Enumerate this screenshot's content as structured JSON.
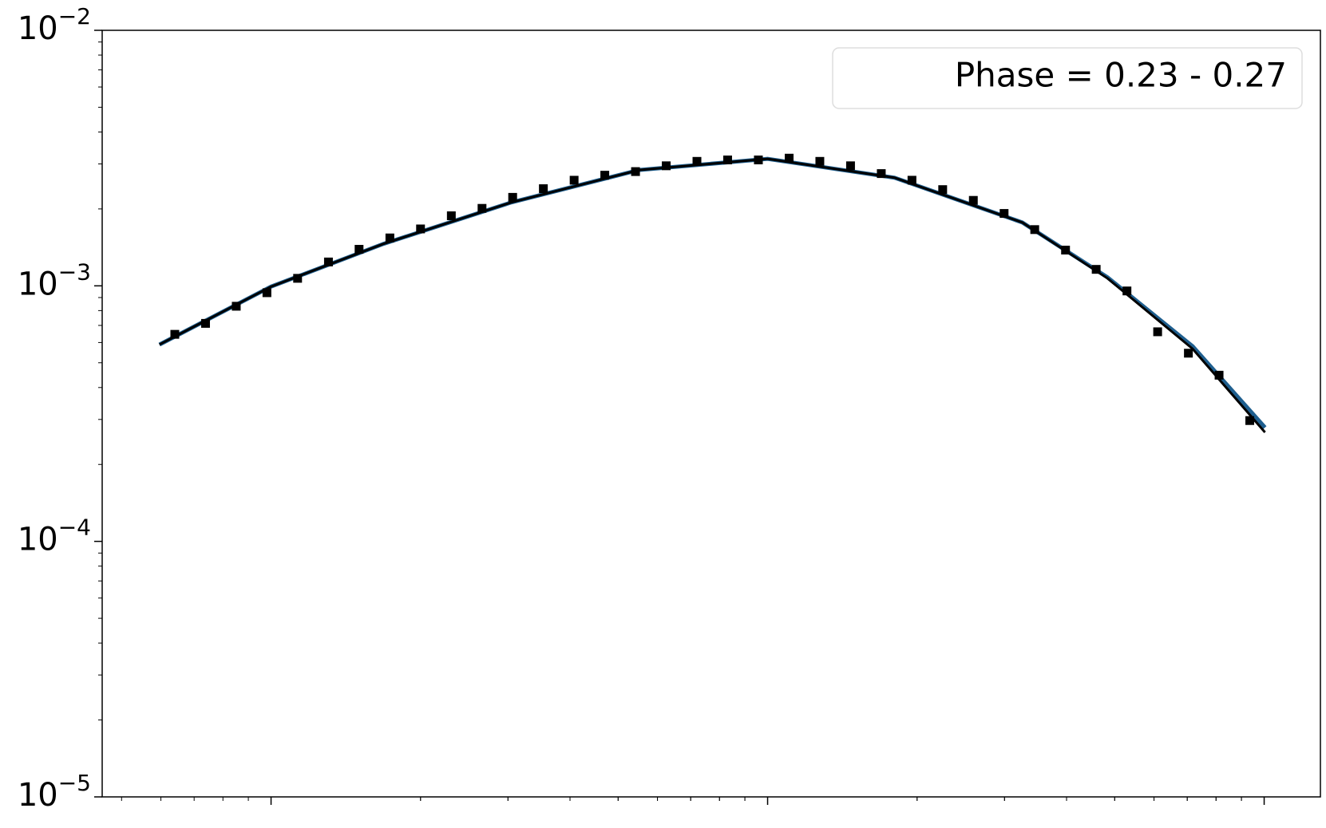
{
  "chart_data": {
    "type": "scatter",
    "legend_label": "Phase = 0.23 - 0.27",
    "legend_position": "upper right",
    "x_log": true,
    "y_log": true,
    "xlim": [
      0.457,
      129.8
    ],
    "xticks": [
      1,
      10,
      100
    ],
    "ylim": [
      1e-05,
      0.01
    ],
    "yticks": [
      {
        "value": 1e-05,
        "label": "10−5"
      },
      {
        "value": 0.0001,
        "label": "10−4"
      },
      {
        "value": 0.001,
        "label": "10−3"
      },
      {
        "value": 0.01,
        "label": "10−2"
      }
    ],
    "x": [
      0.64,
      0.738,
      0.851,
      0.981,
      1.131,
      1.305,
      1.504,
      1.735,
      2.0,
      2.307,
      2.66,
      3.066,
      3.535,
      4.077,
      4.7,
      5.42,
      6.249,
      7.206,
      8.308,
      9.581,
      11.05,
      12.74,
      14.69,
      16.94,
      19.53,
      22.52,
      25.96,
      29.94,
      34.51,
      39.81,
      45.89,
      52.93,
      61.02,
      70.37,
      81.13,
      93.55
    ],
    "values": [
      0.000646,
      0.000713,
      0.000832,
      0.00094,
      0.00107,
      0.00124,
      0.00139,
      0.00154,
      0.00167,
      0.00188,
      0.00201,
      0.00222,
      0.0024,
      0.00259,
      0.00271,
      0.0028,
      0.00295,
      0.00307,
      0.00311,
      0.00311,
      0.00316,
      0.00307,
      0.00295,
      0.00275,
      0.00259,
      0.00238,
      0.00216,
      0.00192,
      0.00166,
      0.00138,
      0.00116,
      0.000955,
      0.000661,
      0.000545,
      0.000447,
      0.000297
    ],
    "color": "#000000",
    "lines": [
      {
        "color": "#1f5f8f",
        "x": [
          0.596,
          1,
          1.684,
          3.045,
          5.508,
          10,
          18.01,
          32.58,
          48.36,
          71.76,
          100.4
        ],
        "values": [
          0.000589,
          0.000993,
          0.00146,
          0.00212,
          0.00284,
          0.00314,
          0.00265,
          0.00177,
          0.00108,
          0.00058,
          0.000279
        ]
      },
      {
        "color": "#000000",
        "x": [
          0.596,
          1,
          1.684,
          3.045,
          5.508,
          10,
          18.01,
          32.58,
          48.36,
          71.76,
          100.4
        ],
        "values": [
          0.000589,
          0.000993,
          0.00146,
          0.00212,
          0.00284,
          0.00314,
          0.00265,
          0.00177,
          0.00107,
          0.000567,
          0.000267
        ]
      }
    ]
  }
}
